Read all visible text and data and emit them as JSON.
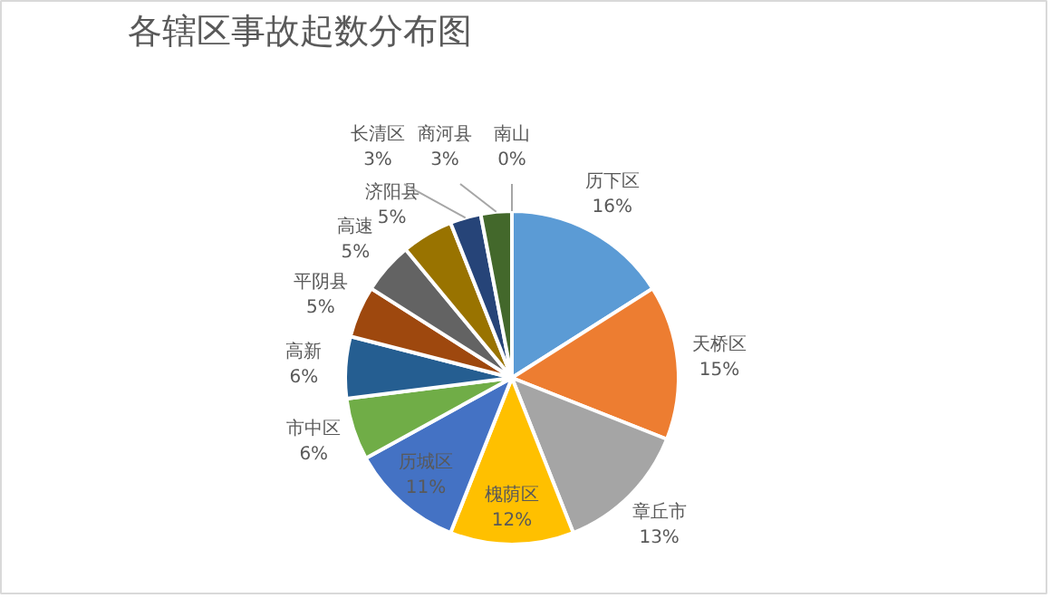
{
  "chart_data": {
    "type": "pie",
    "title": "各辖区事故起数分布图",
    "categories": [
      "历下区",
      "天桥区",
      "章丘市",
      "槐荫区",
      "历城区",
      "市中区",
      "高新",
      "平阴县",
      "高速",
      "济阳县",
      "长清区",
      "商河县",
      "南山"
    ],
    "values": [
      16,
      15,
      13,
      12,
      11,
      6,
      6,
      5,
      5,
      5,
      3,
      3,
      0
    ],
    "value_labels": [
      "16%",
      "15%",
      "13%",
      "12%",
      "11%",
      "6%",
      "6%",
      "5%",
      "5%",
      "5%",
      "3%",
      "3%",
      "0%"
    ],
    "colors": [
      "#5b9bd5",
      "#ed7d31",
      "#a5a5a5",
      "#ffc000",
      "#4472c4",
      "#70ad47",
      "#255e91",
      "#9e480e",
      "#636363",
      "#997300",
      "#264478",
      "#43682b",
      "#698ed0"
    ]
  }
}
